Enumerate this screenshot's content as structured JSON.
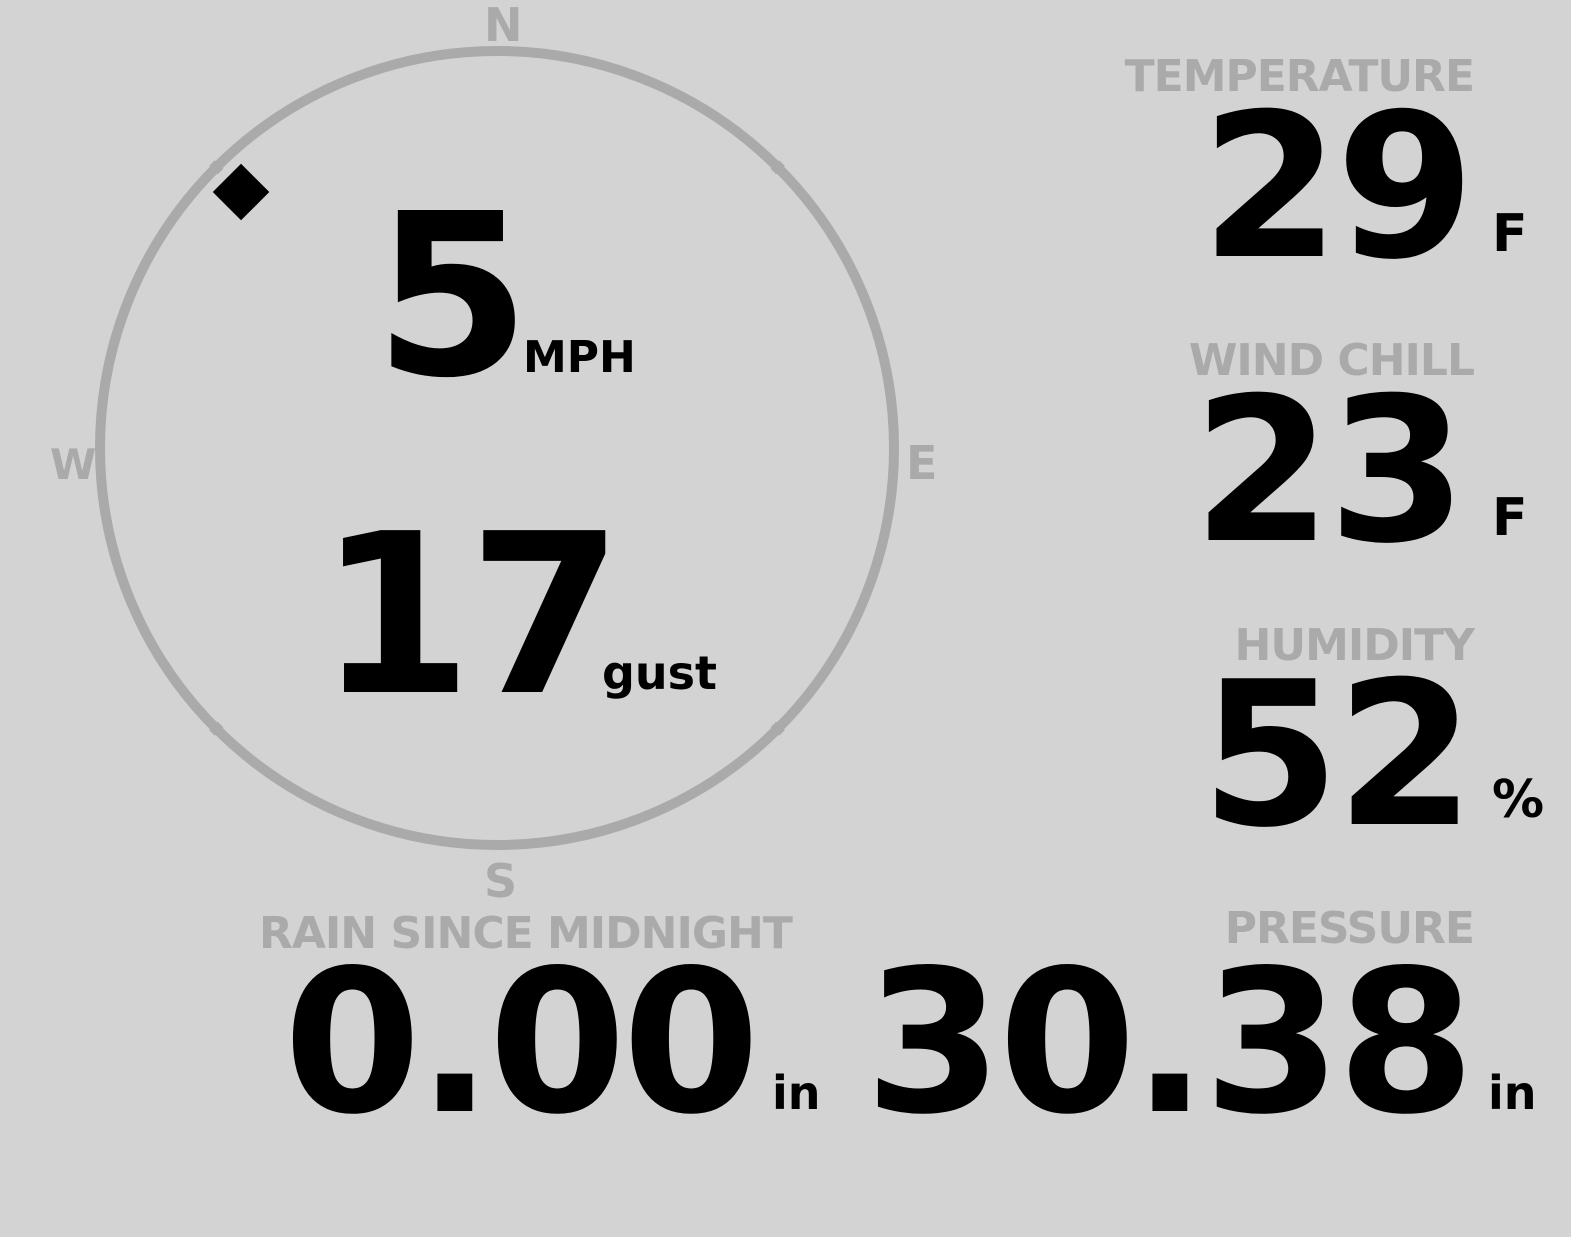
{
  "colors": {
    "background": "#d3d3d3",
    "label": "#aaaaaa",
    "value": "#000000",
    "dial": "#aaaaaa"
  },
  "compass": {
    "north": "N",
    "east": "E",
    "south": "S",
    "west": "W",
    "wind_direction_deg": 315,
    "marker_icon": "diamond-icon"
  },
  "wind": {
    "speed": "5",
    "speed_unit": "MPH",
    "gust": "17",
    "gust_unit": "gust"
  },
  "temperature": {
    "label": "TEMPERATURE",
    "value": "29",
    "unit": "F"
  },
  "wind_chill": {
    "label": "WIND CHILL",
    "value": "23",
    "unit": "F"
  },
  "humidity": {
    "label": "HUMIDITY",
    "value": "52",
    "unit": "%"
  },
  "rain": {
    "label": "RAIN SINCE MIDNIGHT",
    "value": "0.00",
    "unit": "in"
  },
  "pressure": {
    "label": "PRESSURE",
    "value": "30.38",
    "unit": "in"
  }
}
